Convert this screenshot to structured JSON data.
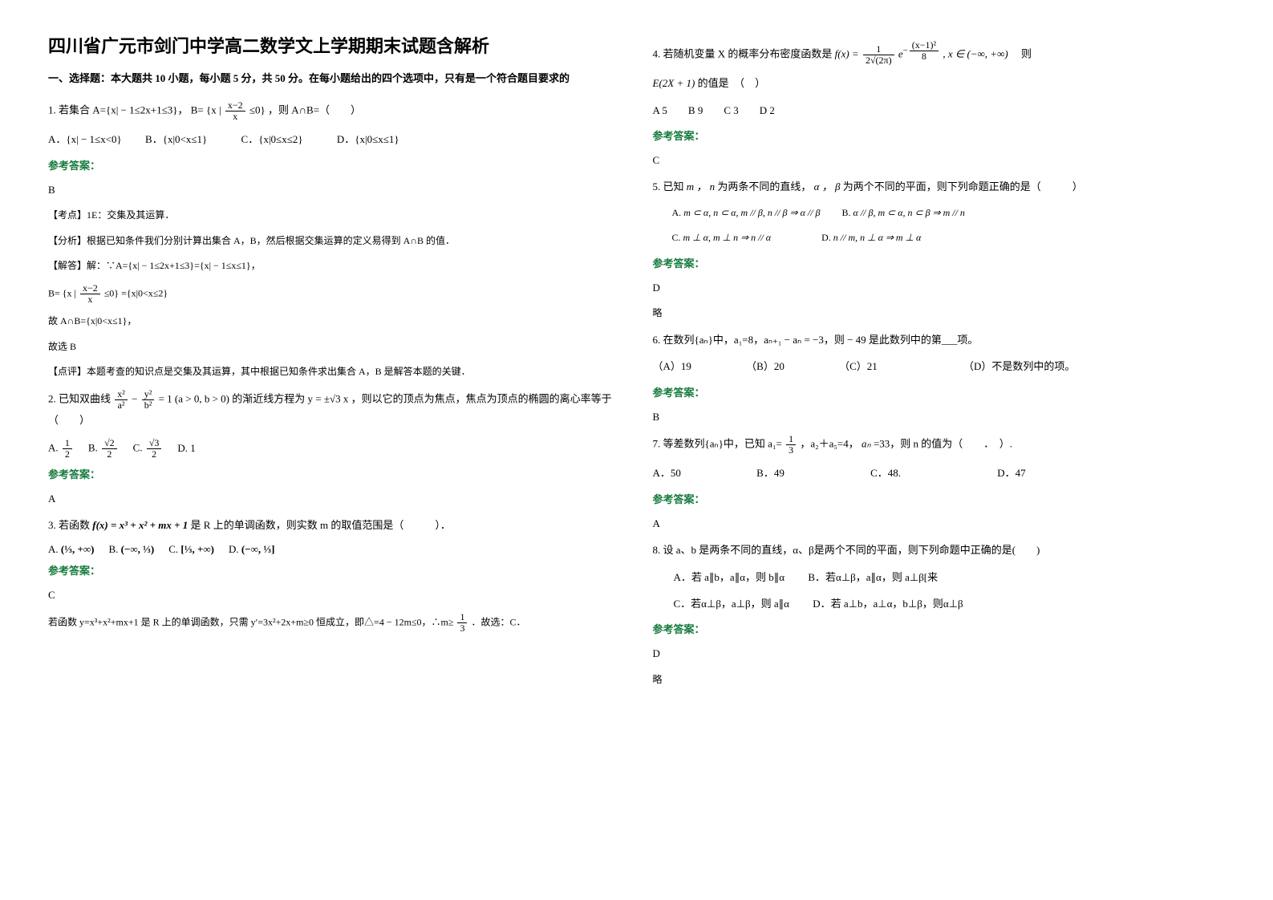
{
  "title": "四川省广元市剑门中学高二数学文上学期期末试题含解析",
  "partI_heading": "一、选择题：本大题共 10 小题，每小题 5 分，共 50 分。在每小题给出的四个选项中，只有是一个符合题目要求的",
  "q1": {
    "stem_a": "1. 若集合 A={x| − 1≤2x+1≤3}，",
    "stem_b_pre": "B= {x |",
    "stem_b_frac_n": "x−2",
    "stem_b_frac_d": "x",
    "stem_b_post": "≤0}",
    "stem_c": "，则 A∩B=（　　）",
    "optA": "A．{x| − 1≤x<0}",
    "optB": "B．{x|0<x≤1}",
    "optC": "C．{x|0≤x≤2}",
    "optD": "D．{x|0≤x≤1}",
    "ans_label": "参考答案：",
    "ans": "B",
    "kaodian": "【考点】1E：交集及其运算．",
    "fenxi": "【分析】根据已知条件我们分别计算出集合 A，B，然后根据交集运算的定义易得到 A∩B 的值．",
    "jieda1": "【解答】解：∵A={x| − 1≤2x+1≤3}={x| − 1≤x≤1}，",
    "jieda2_pre": "B= {x |",
    "jieda2_frac_n": "x−2",
    "jieda2_frac_d": "x",
    "jieda2_post": "≤0}",
    "jieda2_eq": " ={x|0<x≤2}",
    "jieda3": "故 A∩B={x|0<x≤1}，",
    "jieda4": "故选 B",
    "dianping": "【点评】本题考查的知识点是交集及其运算，其中根据已知条件求出集合 A，B 是解答本题的关键．"
  },
  "q2": {
    "stem_a": "2. 已知双曲线",
    "eq_a": "x²",
    "eq_b": "a²",
    "eq_c": "y²",
    "eq_d": "b²",
    "eq_eq": "= 1 (a > 0, b > 0)",
    "stem_b": "的渐近线方程为",
    "asym": "y = ±√3 x",
    "stem_c": "，则以它的顶点为焦点，焦点为顶点的椭圆的离心率等于（　　）",
    "optA_pre": "A.",
    "optA_n": "1",
    "optA_d": "2",
    "optB_pre": "B.",
    "optB_n": "√2",
    "optB_d": "2",
    "optC_pre": "C.",
    "optC_n": "√3",
    "optC_d": "2",
    "optD": "D. 1",
    "ans_label": "参考答案：",
    "ans": "A"
  },
  "q3": {
    "stem_a": "3. 若函数",
    "func": "f(x) = x³ + x² + mx + 1",
    "stem_b": "是 R 上的单调函数，则实数 m 的取值范围是（　　　）．",
    "optA_pre": "A.",
    "optA_body": "(⅓, +∞)",
    "optB_pre": "B.",
    "optB_body": "(−∞, ⅓)",
    "optC_pre": "C.",
    "optC_body": "[⅓, +∞)",
    "optD_pre": "D.",
    "optD_body": "(−∞, ⅓]",
    "ans_label": "参考答案：",
    "ans": "C",
    "expl_a": "若函数 y=x³+x²+mx+1 是 R 上的单调函数，只需 y′=3x²+2x+m≥0 恒成立，即△=4 − 12m≤0，∴m≥",
    "expl_frac_n": "1",
    "expl_frac_d": "3",
    "expl_b": "．故选：C．"
  },
  "q4": {
    "stem_a": "4. 若随机变量 X 的概率分布密度函数是",
    "fx_a": "f(x) =",
    "fx_n": "1",
    "fx_d": "2√(2π)",
    "fx_e": "e",
    "fx_exp_n": "(x−1)²",
    "fx_exp_d": "8",
    "fx_dom": ", x ∈ (−∞, +∞)",
    "stem_b": "则",
    "e2x1": "E(2X + 1)",
    "stem_c": "的值是　（　）",
    "opts": "A 5　　B 9　　C 3　　D 2",
    "ans_label": "参考答案：",
    "ans": "C"
  },
  "q5": {
    "stem_a": "5. 已知",
    "mn": "m ， n",
    "stem_b": "为两条不同的直线，",
    "ab": "α ， β",
    "stem_c": "为两个不同的平面，则下列命题正确的是（　　　）",
    "optA_pre": "A.",
    "optA": "m ⊂ α, n ⊂ α, m // β, n // β ⇒ α // β",
    "optB_pre": "B.",
    "optB": "α // β, m ⊂ α, n ⊂ β ⇒ m // n",
    "optC_pre": "C.",
    "optC": "m ⊥ α, m ⊥ n ⇒ n // α",
    "optD_pre": "D.",
    "optD": "n // m, n ⊥ α ⇒ m ⊥ α",
    "ans_label": "参考答案：",
    "ans": "D",
    "lue": "略"
  },
  "q6": {
    "stem": "6. 在数列{aₙ}中，a₁=8，aₙ₊₁ − aₙ = −3，则 − 49 是此数列中的第___项。",
    "optA": "（A）19",
    "optB": "（B）20",
    "optC": "（C）21",
    "optD": "（D）不是数列中的项。",
    "ans_label": "参考答案：",
    "ans": "B"
  },
  "q7": {
    "stem_a": "7. 等差数列{aₙ}中，已知 a₁=",
    "a1_n": "1",
    "a1_d": "3",
    "stem_b": "，a₂＋a₅=4，",
    "an": "aₙ",
    "stem_c": " =33，则 n 的值为（　　．　）.",
    "optA": "A．50",
    "optB": "B．49",
    "optC": "C．48.",
    "optD": "D．47",
    "ans_label": "参考答案：",
    "ans": "A"
  },
  "q8": {
    "stem": "8. 设 a、b 是两条不同的直线，α、β是两个不同的平面，则下列命题中正确的是(　　)",
    "optA": "A．若 a∥b，a∥α，则 b∥α",
    "optB": "B．若α⊥β，a∥α，则 a⊥β[来",
    "optC": "C．若α⊥β，a⊥β，则 a∥α",
    "optD": "D．若 a⊥b，a⊥α，b⊥β，则α⊥β",
    "ans_label": "参考答案：",
    "ans": "D",
    "lue": "略"
  }
}
